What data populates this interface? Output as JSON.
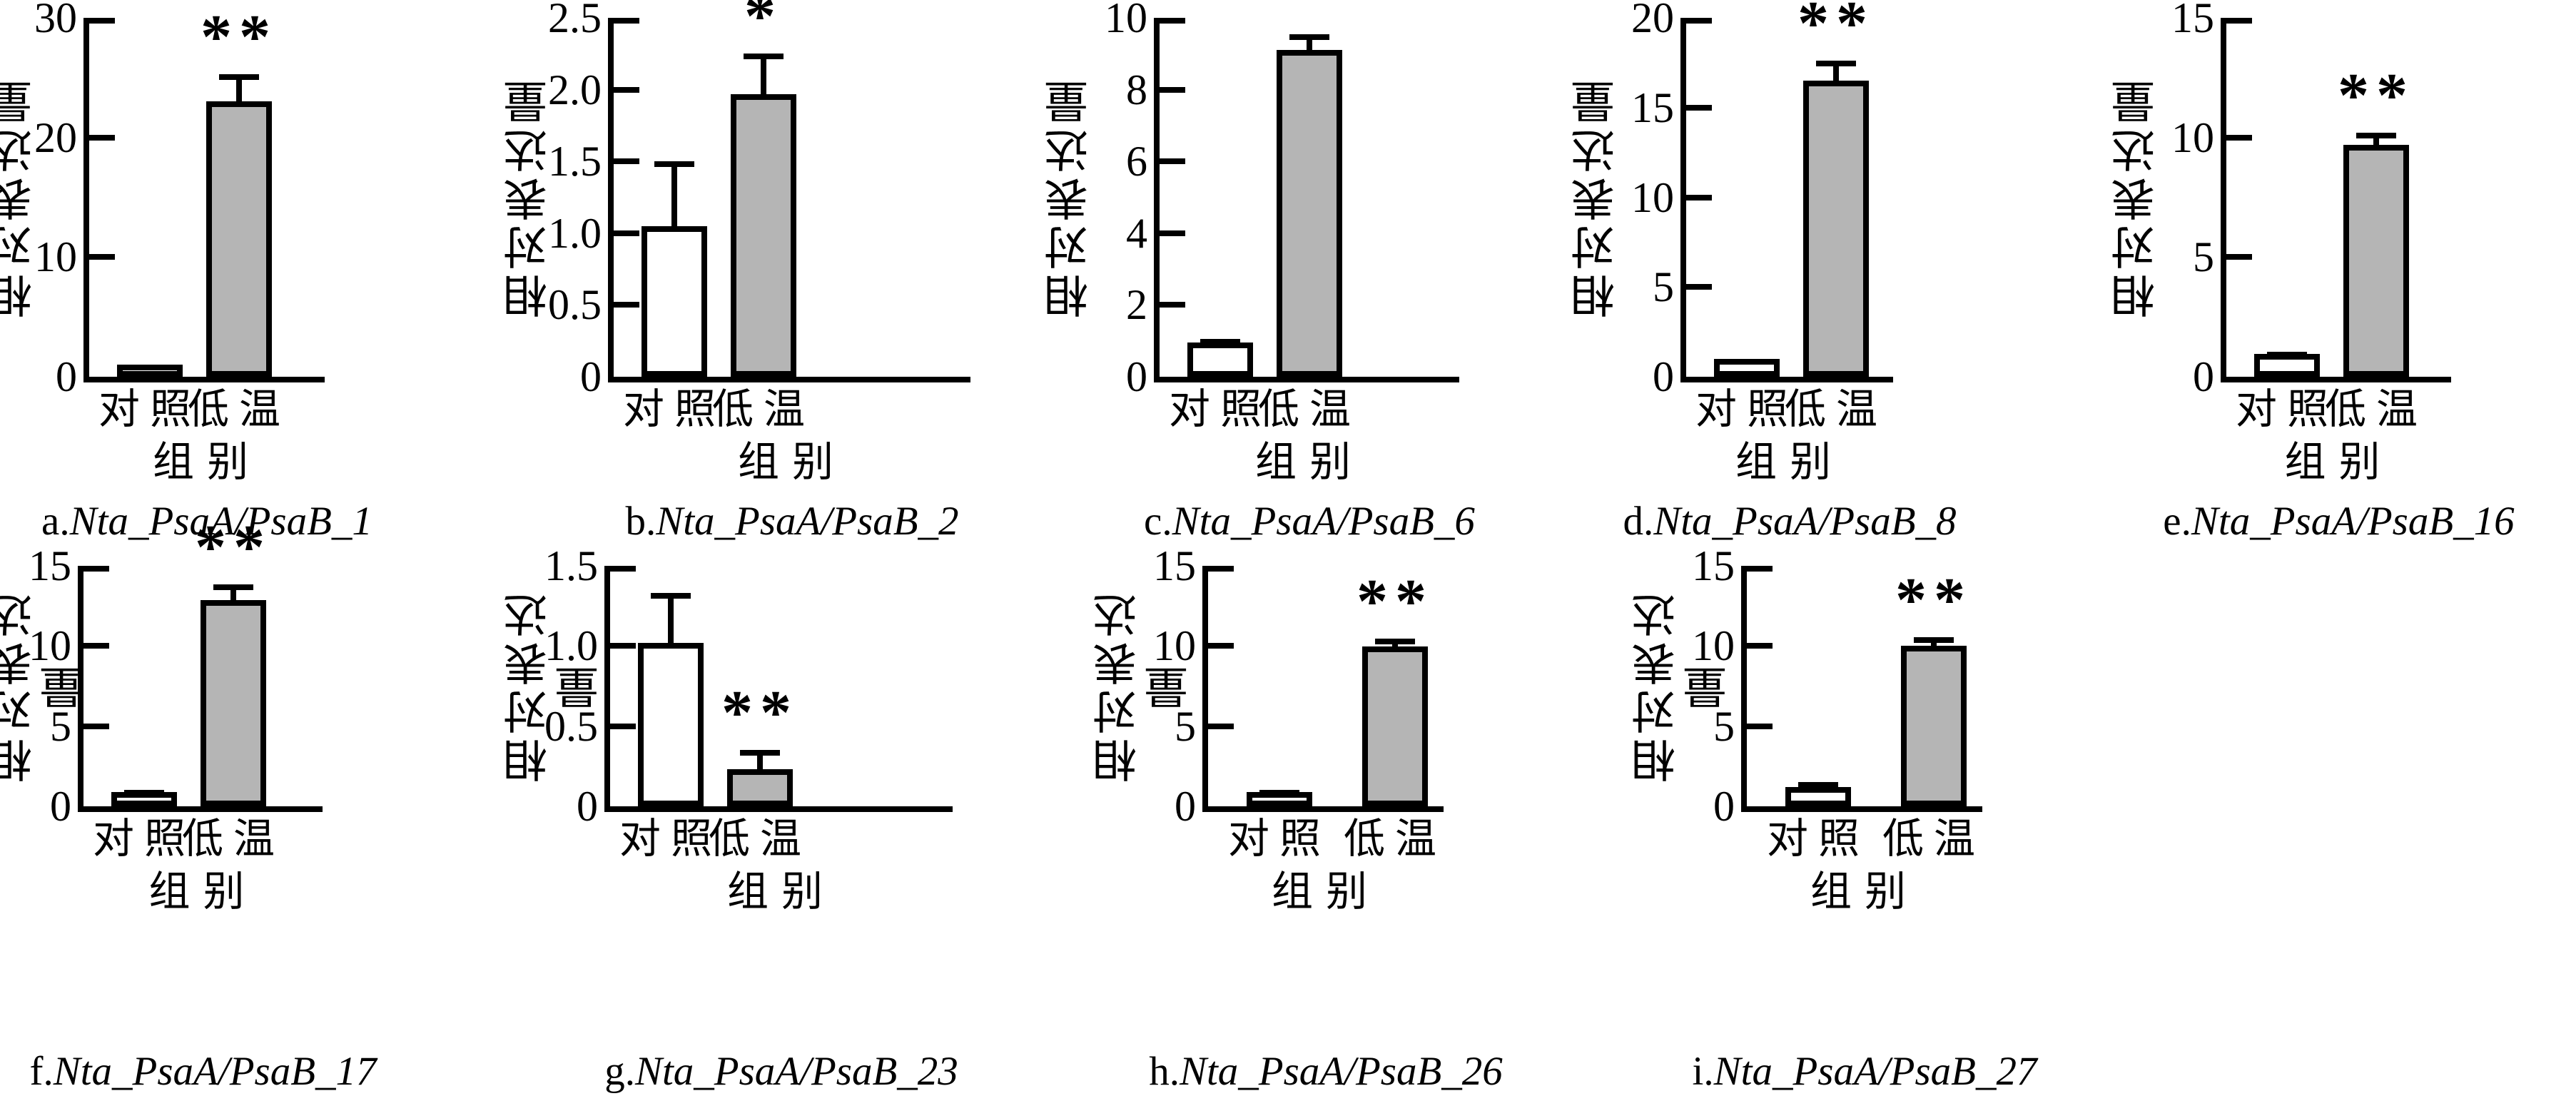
{
  "figure": {
    "ylabel": "相对表达量",
    "xlabel": "组别",
    "categories": [
      "对照",
      "低温"
    ],
    "bar_colors": {
      "control": "#ffffff",
      "treatment": "#b5b5b5"
    },
    "outline_color": "#000000"
  },
  "chart_data": [
    {
      "type": "bar",
      "panel": "a.",
      "gene": "Nta_PsaA/PsaB_1",
      "caption": "a.Nta_PsaA/PsaB_1",
      "ylabel": "相对表达量",
      "xlabel": "组别",
      "categories": [
        "对照",
        "低温"
      ],
      "values": [
        1.0,
        23.0
      ],
      "errors": [
        0,
        2.3
      ],
      "significance": "**",
      "sig_on": "低温",
      "ylim": [
        0,
        30
      ],
      "yticks": [
        0,
        10,
        20,
        30
      ],
      "ytick_labels": [
        "0",
        "10",
        "20",
        "30"
      ]
    },
    {
      "type": "bar",
      "panel": "b.",
      "gene": "Nta_PsaA/PsaB_2",
      "caption": "b.Nta_PsaA/PsaB_2",
      "ylabel": "相对表达量",
      "xlabel": "组别",
      "categories": [
        "对照",
        "低温"
      ],
      "values": [
        1.05,
        1.97
      ],
      "errors": [
        0.45,
        0.28
      ],
      "significance": "*",
      "sig_on": "低温",
      "ylim": [
        0,
        2.5
      ],
      "yticks": [
        0,
        0.5,
        1.0,
        1.5,
        2.0,
        2.5
      ],
      "ytick_labels": [
        "0",
        "0.5",
        "1.0",
        "1.5",
        "2.0",
        "2.5"
      ]
    },
    {
      "type": "bar",
      "panel": "c.",
      "gene": "Nta_PsaA/PsaB_6",
      "caption": "c.Nta_PsaA/PsaB_6",
      "ylabel": "相对表达量",
      "xlabel": "组别",
      "categories": [
        "对照",
        "低温"
      ],
      "values": [
        0.95,
        9.1
      ],
      "errors": [
        0.1,
        0.45
      ],
      "significance": "**",
      "sig_on": "低温",
      "ylim": [
        0,
        10
      ],
      "yticks": [
        0,
        2,
        4,
        6,
        8,
        10
      ],
      "ytick_labels": [
        "0",
        "2",
        "4",
        "6",
        "8",
        "10"
      ]
    },
    {
      "type": "bar",
      "panel": "d.",
      "gene": "Nta_PsaA/PsaB_8",
      "caption": "d.Nta_PsaA/PsaB_8",
      "ylabel": "相对表达量",
      "xlabel": "组别",
      "categories": [
        "对照",
        "低温"
      ],
      "values": [
        1.0,
        16.5
      ],
      "errors": [
        0,
        1.1
      ],
      "significance": "**",
      "sig_on": "低温",
      "ylim": [
        0,
        20
      ],
      "yticks": [
        0,
        5,
        10,
        15,
        20
      ],
      "ytick_labels": [
        "0",
        "5",
        "10",
        "15",
        "20"
      ]
    },
    {
      "type": "bar",
      "panel": "e.",
      "gene": "Nta_PsaA/PsaB_16",
      "caption": "e.Nta_PsaA/PsaB_16",
      "ylabel": "相对表达量",
      "xlabel": "组别",
      "categories": [
        "对照",
        "低温"
      ],
      "values": [
        0.95,
        9.7
      ],
      "errors": [
        0.1,
        0.5
      ],
      "significance": "**",
      "sig_on": "低温",
      "ylim": [
        0,
        15
      ],
      "yticks": [
        0,
        5,
        10,
        15
      ],
      "ytick_labels": [
        "0",
        "5",
        "10",
        "15"
      ]
    },
    {
      "type": "bar",
      "panel": "f.",
      "gene": "Nta_PsaA/PsaB_17",
      "caption": "f.Nta_PsaA/PsaB_17",
      "ylabel": "相对表达量",
      "xlabel": "组别",
      "categories": [
        "对照",
        "低温"
      ],
      "values": [
        0.9,
        12.85
      ],
      "errors": [
        0.12,
        1.0
      ],
      "significance": "**",
      "sig_on": "低温",
      "ylim": [
        0,
        15
      ],
      "yticks": [
        0,
        5,
        10,
        15
      ],
      "ytick_labels": [
        "0",
        "5",
        "10",
        "15"
      ]
    },
    {
      "type": "bar",
      "panel": "g.",
      "gene": "Nta_PsaA/PsaB_23",
      "caption": "g.Nta_PsaA/PsaB_23",
      "ylabel": "相对表达量",
      "xlabel": "组别",
      "categories": [
        "对照",
        "低温"
      ],
      "values": [
        1.02,
        0.23
      ],
      "errors": [
        0.31,
        0.12
      ],
      "significance": "**",
      "sig_on": "低温",
      "ylim": [
        0,
        1.5
      ],
      "yticks": [
        0,
        0.5,
        1.0,
        1.5
      ],
      "ytick_labels": [
        "0",
        "0.5",
        "1.0",
        "1.5"
      ]
    },
    {
      "type": "bar",
      "panel": "h.",
      "gene": "Nta_PsaA/PsaB_26",
      "caption": "h.Nta_PsaA/PsaB_26",
      "ylabel": "相对表达量",
      "xlabel": "组别",
      "categories": [
        "对照",
        "低温"
      ],
      "values": [
        0.9,
        9.95
      ],
      "errors": [
        0.12,
        0.5
      ],
      "significance": "**",
      "sig_on": "低温",
      "ylim": [
        0,
        15
      ],
      "yticks": [
        0,
        5,
        10,
        15
      ],
      "ytick_labels": [
        "0",
        "5",
        "10",
        "15"
      ]
    },
    {
      "type": "bar",
      "panel": "i.",
      "gene": "Nta_PsaA/PsaB_27",
      "caption": "i.Nta_PsaA/PsaB_27",
      "ylabel": "相对表达量",
      "xlabel": "组别",
      "categories": [
        "对照",
        "低温"
      ],
      "values": [
        1.2,
        10.0
      ],
      "errors": [
        0.3,
        0.55
      ],
      "significance": "**",
      "sig_on": "低温",
      "ylim": [
        0,
        15
      ],
      "yticks": [
        0,
        5,
        10,
        15
      ],
      "ytick_labels": [
        "0",
        "5",
        "10",
        "15"
      ]
    }
  ]
}
